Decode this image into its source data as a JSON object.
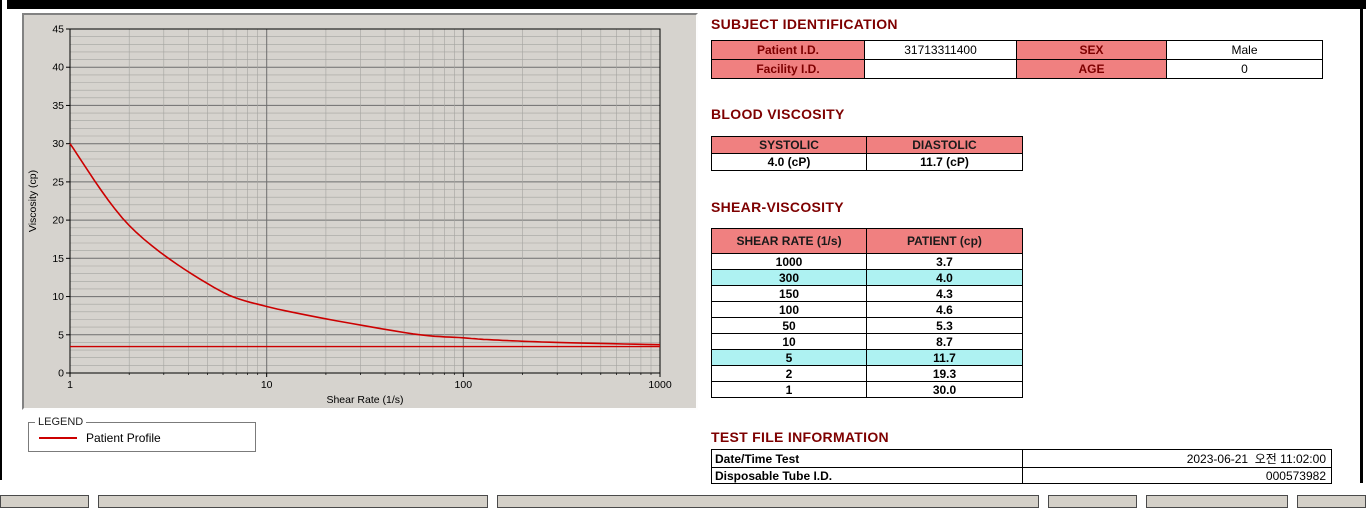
{
  "legend": {
    "title": "LEGEND",
    "series_label": "Patient Profile"
  },
  "subject_identification": {
    "title": "SUBJECT IDENTIFICATION",
    "rows": [
      {
        "label1": "Patient I.D.",
        "value1": "31713311400",
        "label2": "SEX",
        "value2": "Male"
      },
      {
        "label1": "Facility I.D.",
        "value1": "",
        "label2": "AGE",
        "value2": "0"
      }
    ]
  },
  "blood_viscosity": {
    "title": "BLOOD VISCOSITY",
    "headers": [
      "SYSTOLIC",
      "DIASTOLIC"
    ],
    "values": [
      "4.0 (cP)",
      "11.7 (cP)"
    ]
  },
  "shear_viscosity": {
    "title": "SHEAR-VISCOSITY",
    "headers": [
      "SHEAR RATE (1/s)",
      "PATIENT (cp)"
    ],
    "rows": [
      {
        "rate": "1000",
        "value": "3.7",
        "highlight": false
      },
      {
        "rate": "300",
        "value": "4.0",
        "highlight": true
      },
      {
        "rate": "150",
        "value": "4.3",
        "highlight": false
      },
      {
        "rate": "100",
        "value": "4.6",
        "highlight": false
      },
      {
        "rate": "50",
        "value": "5.3",
        "highlight": false
      },
      {
        "rate": "10",
        "value": "8.7",
        "highlight": false
      },
      {
        "rate": "5",
        "value": "11.7",
        "highlight": true
      },
      {
        "rate": "2",
        "value": "19.3",
        "highlight": false
      },
      {
        "rate": "1",
        "value": "30.0",
        "highlight": false
      }
    ]
  },
  "test_file_information": {
    "title": "TEST FILE INFORMATION",
    "rows": [
      {
        "label": "Date/Time Test",
        "value": "2023-06-21  오전 11:02:00"
      },
      {
        "label": "Disposable Tube I.D.",
        "value": "000573982"
      }
    ]
  },
  "colors": {
    "section_title": "#7e0000",
    "table_header_bg": "#f08080",
    "highlight_bg": "#aef2f2",
    "series_red": "#cc0000",
    "axis_label_blue": "#0000cc"
  },
  "chart_data": {
    "type": "line",
    "x": [
      1,
      2,
      5,
      10,
      50,
      100,
      150,
      300,
      1000
    ],
    "series": [
      {
        "name": "Patient Profile",
        "color": "#cc0000",
        "values": [
          30.0,
          19.3,
          11.7,
          8.7,
          5.3,
          4.6,
          4.3,
          4.0,
          3.7
        ]
      }
    ],
    "reference_line": {
      "y": 3.45,
      "color": "#cc0000"
    },
    "xlabel": "Shear Rate (1/s)",
    "ylabel": "Viscosity (cp)",
    "xscale": "log",
    "xlim": [
      1,
      1000
    ],
    "ylim": [
      0,
      45
    ],
    "y_major_step": 5,
    "y_minor_step": 1,
    "grid": true,
    "axis_label_color": "#0000cc",
    "x_ticks": [
      1,
      10,
      100,
      1000
    ],
    "y_ticks": [
      0,
      5,
      10,
      15,
      20,
      25,
      30,
      35,
      40,
      45
    ],
    "legend_position": "below-left"
  }
}
